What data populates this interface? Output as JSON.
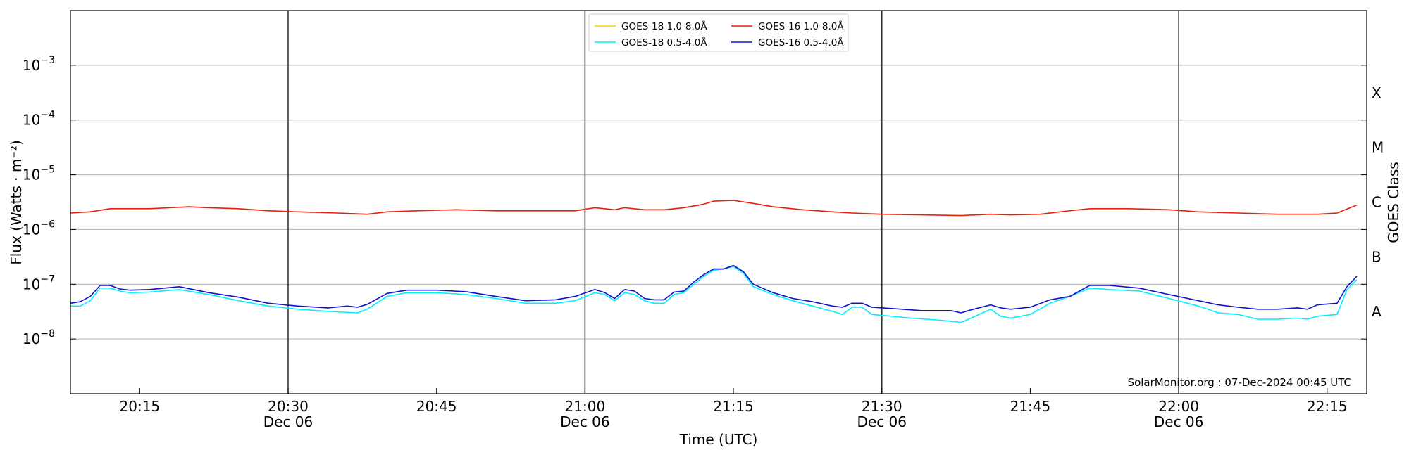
{
  "chart_data": {
    "type": "line",
    "xlabel": "Time (UTC)",
    "ylabel": "Flux (Watts · m⁻²)",
    "ylabel_right": "GOES Class",
    "credit": "SolarMonitor.org : 07-Dec-2024 00:45 UTC",
    "y_scale": "log",
    "ylim": [
      1e-09,
      0.01
    ],
    "xlim": [
      "20:08",
      "22:19"
    ],
    "grid": "horizontal",
    "legend_position": "top-center",
    "y_ticks": [
      {
        "value": 1e-08,
        "base": "10",
        "exp": "−8"
      },
      {
        "value": 1e-07,
        "base": "10",
        "exp": "−7"
      },
      {
        "value": 1e-06,
        "base": "10",
        "exp": "−6"
      },
      {
        "value": 1e-05,
        "base": "10",
        "exp": "−5"
      },
      {
        "value": 0.0001,
        "base": "10",
        "exp": "−4"
      },
      {
        "value": 0.001,
        "base": "10",
        "exp": "−3"
      }
    ],
    "x_ticks": [
      {
        "time": "20:15",
        "label": "20:15",
        "date": ""
      },
      {
        "time": "20:30",
        "label": "20:30",
        "date": "Dec 06"
      },
      {
        "time": "20:45",
        "label": "20:45",
        "date": ""
      },
      {
        "time": "21:00",
        "label": "21:00",
        "date": "Dec 06"
      },
      {
        "time": "21:15",
        "label": "21:15",
        "date": ""
      },
      {
        "time": "21:30",
        "label": "21:30",
        "date": "Dec 06"
      },
      {
        "time": "21:45",
        "label": "21:45",
        "date": ""
      },
      {
        "time": "22:00",
        "label": "22:00",
        "date": "Dec 06"
      },
      {
        "time": "22:15",
        "label": "22:15",
        "date": ""
      }
    ],
    "vlines": [
      "20:30",
      "21:00",
      "21:30",
      "22:00"
    ],
    "goes_classes": [
      {
        "label": "X",
        "value": 0.000316
      },
      {
        "label": "M",
        "value": 3.16e-05
      },
      {
        "label": "C",
        "value": 3.16e-06
      },
      {
        "label": "B",
        "value": 3.16e-07
      },
      {
        "label": "A",
        "value": 3.16e-08
      }
    ],
    "legend": [
      {
        "name": "GOES-18 1.0-8.0Å",
        "color": "#f5d000"
      },
      {
        "name": "GOES-18 0.5-4.0Å",
        "color": "#00f0ff"
      },
      {
        "name": "GOES-16 1.0-8.0Å",
        "color": "#e8200a"
      },
      {
        "name": "GOES-16 0.5-4.0Å",
        "color": "#1010d0"
      }
    ],
    "series": [
      {
        "name": "GOES-16 1.0-8.0Å",
        "color": "#e8200a",
        "points": [
          [
            "20:08",
            2e-06
          ],
          [
            "20:10",
            2.1e-06
          ],
          [
            "20:12",
            2.4e-06
          ],
          [
            "20:14",
            2.4e-06
          ],
          [
            "20:16",
            2.4e-06
          ],
          [
            "20:18",
            2.5e-06
          ],
          [
            "20:20",
            2.6e-06
          ],
          [
            "20:22",
            2.5e-06
          ],
          [
            "20:25",
            2.4e-06
          ],
          [
            "20:28",
            2.2e-06
          ],
          [
            "20:31",
            2.1e-06
          ],
          [
            "20:35",
            2e-06
          ],
          [
            "20:38",
            1.9e-06
          ],
          [
            "20:40",
            2.1e-06
          ],
          [
            "20:43",
            2.2e-06
          ],
          [
            "20:47",
            2.3e-06
          ],
          [
            "20:51",
            2.2e-06
          ],
          [
            "20:55",
            2.2e-06
          ],
          [
            "20:59",
            2.2e-06
          ],
          [
            "21:01",
            2.5e-06
          ],
          [
            "21:03",
            2.3e-06
          ],
          [
            "21:04",
            2.5e-06
          ],
          [
            "21:06",
            2.3e-06
          ],
          [
            "21:08",
            2.3e-06
          ],
          [
            "21:10",
            2.5e-06
          ],
          [
            "21:12",
            2.9e-06
          ],
          [
            "21:13",
            3.3e-06
          ],
          [
            "21:15",
            3.4e-06
          ],
          [
            "21:17",
            3e-06
          ],
          [
            "21:19",
            2.6e-06
          ],
          [
            "21:22",
            2.3e-06
          ],
          [
            "21:25",
            2.1e-06
          ],
          [
            "21:27",
            2e-06
          ],
          [
            "21:30",
            1.9e-06
          ],
          [
            "21:34",
            1.85e-06
          ],
          [
            "21:38",
            1.8e-06
          ],
          [
            "21:41",
            1.9e-06
          ],
          [
            "21:43",
            1.85e-06
          ],
          [
            "21:46",
            1.9e-06
          ],
          [
            "21:48",
            2.1e-06
          ],
          [
            "21:51",
            2.4e-06
          ],
          [
            "21:55",
            2.4e-06
          ],
          [
            "21:59",
            2.3e-06
          ],
          [
            "22:02",
            2.1e-06
          ],
          [
            "22:06",
            2e-06
          ],
          [
            "22:10",
            1.9e-06
          ],
          [
            "22:14",
            1.9e-06
          ],
          [
            "22:16",
            2e-06
          ],
          [
            "22:18",
            2.8e-06
          ]
        ]
      },
      {
        "name": "GOES-18 0.5-4.0Å",
        "color": "#00f0ff",
        "points": [
          [
            "20:08",
            4e-08
          ],
          [
            "20:09",
            4e-08
          ],
          [
            "20:10",
            5e-08
          ],
          [
            "20:11",
            8.5e-08
          ],
          [
            "20:12",
            8.5e-08
          ],
          [
            "20:13",
            7.5e-08
          ],
          [
            "20:14",
            7e-08
          ],
          [
            "20:16",
            7.2e-08
          ],
          [
            "20:19",
            8e-08
          ],
          [
            "20:22",
            6.5e-08
          ],
          [
            "20:25",
            5e-08
          ],
          [
            "20:28",
            4e-08
          ],
          [
            "20:31",
            3.5e-08
          ],
          [
            "20:34",
            3.2e-08
          ],
          [
            "20:37",
            3e-08
          ],
          [
            "20:38",
            3.5e-08
          ],
          [
            "20:40",
            6e-08
          ],
          [
            "20:42",
            7e-08
          ],
          [
            "20:45",
            7e-08
          ],
          [
            "20:48",
            6.5e-08
          ],
          [
            "20:51",
            5.5e-08
          ],
          [
            "20:54",
            4.5e-08
          ],
          [
            "20:57",
            4.5e-08
          ],
          [
            "20:59",
            5e-08
          ],
          [
            "21:01",
            7e-08
          ],
          [
            "21:02",
            6.5e-08
          ],
          [
            "21:03",
            5e-08
          ],
          [
            "21:04",
            7e-08
          ],
          [
            "21:05",
            6.5e-08
          ],
          [
            "21:06",
            5e-08
          ],
          [
            "21:07",
            4.5e-08
          ],
          [
            "21:08",
            4.5e-08
          ],
          [
            "21:09",
            6.5e-08
          ],
          [
            "21:10",
            7e-08
          ],
          [
            "21:11",
            1e-07
          ],
          [
            "21:12",
            1.4e-07
          ],
          [
            "21:13",
            1.8e-07
          ],
          [
            "21:14",
            1.9e-07
          ],
          [
            "21:15",
            2.1e-07
          ],
          [
            "21:16",
            1.6e-07
          ],
          [
            "21:17",
            9e-08
          ],
          [
            "21:19",
            6.5e-08
          ],
          [
            "21:21",
            5e-08
          ],
          [
            "21:23",
            4e-08
          ],
          [
            "21:25",
            3.2e-08
          ],
          [
            "21:26",
            2.8e-08
          ],
          [
            "21:27",
            3.8e-08
          ],
          [
            "21:28",
            3.8e-08
          ],
          [
            "21:29",
            2.8e-08
          ],
          [
            "21:31",
            2.6e-08
          ],
          [
            "21:33",
            2.4e-08
          ],
          [
            "21:36",
            2.2e-08
          ],
          [
            "21:38",
            2e-08
          ],
          [
            "21:39",
            2.4e-08
          ],
          [
            "21:41",
            3.5e-08
          ],
          [
            "21:42",
            2.6e-08
          ],
          [
            "21:43",
            2.4e-08
          ],
          [
            "21:45",
            2.8e-08
          ],
          [
            "21:47",
            4.5e-08
          ],
          [
            "21:49",
            6e-08
          ],
          [
            "21:51",
            8.5e-08
          ],
          [
            "21:53",
            8e-08
          ],
          [
            "21:56",
            7.5e-08
          ],
          [
            "21:59",
            5.5e-08
          ],
          [
            "22:02",
            4e-08
          ],
          [
            "22:04",
            3e-08
          ],
          [
            "22:06",
            2.8e-08
          ],
          [
            "22:08",
            2.3e-08
          ],
          [
            "22:10",
            2.3e-08
          ],
          [
            "22:12",
            2.4e-08
          ],
          [
            "22:13",
            2.3e-08
          ],
          [
            "22:14",
            2.6e-08
          ],
          [
            "22:16",
            2.8e-08
          ],
          [
            "22:17",
            8e-08
          ],
          [
            "22:18",
            1.2e-07
          ]
        ]
      },
      {
        "name": "GOES-16 0.5-4.0Å",
        "color": "#1010d0",
        "points": [
          [
            "20:08",
            4.5e-08
          ],
          [
            "20:09",
            4.8e-08
          ],
          [
            "20:10",
            6e-08
          ],
          [
            "20:11",
            9.5e-08
          ],
          [
            "20:12",
            9.5e-08
          ],
          [
            "20:13",
            8.2e-08
          ],
          [
            "20:14",
            7.8e-08
          ],
          [
            "20:16",
            8e-08
          ],
          [
            "20:19",
            9e-08
          ],
          [
            "20:22",
            7e-08
          ],
          [
            "20:25",
            5.8e-08
          ],
          [
            "20:28",
            4.5e-08
          ],
          [
            "20:31",
            4e-08
          ],
          [
            "20:34",
            3.7e-08
          ],
          [
            "20:36",
            4e-08
          ],
          [
            "20:37",
            3.8e-08
          ],
          [
            "20:38",
            4.3e-08
          ],
          [
            "20:40",
            6.8e-08
          ],
          [
            "20:42",
            7.8e-08
          ],
          [
            "20:45",
            7.8e-08
          ],
          [
            "20:48",
            7.3e-08
          ],
          [
            "20:51",
            6e-08
          ],
          [
            "20:54",
            5e-08
          ],
          [
            "20:57",
            5.2e-08
          ],
          [
            "20:59",
            6e-08
          ],
          [
            "21:01",
            8e-08
          ],
          [
            "21:02",
            7e-08
          ],
          [
            "21:03",
            5.5e-08
          ],
          [
            "21:04",
            8e-08
          ],
          [
            "21:05",
            7.5e-08
          ],
          [
            "21:06",
            5.5e-08
          ],
          [
            "21:07",
            5.2e-08
          ],
          [
            "21:08",
            5.2e-08
          ],
          [
            "21:09",
            7.2e-08
          ],
          [
            "21:10",
            7.5e-08
          ],
          [
            "21:11",
            1.1e-07
          ],
          [
            "21:12",
            1.5e-07
          ],
          [
            "21:13",
            1.9e-07
          ],
          [
            "21:14",
            1.9e-07
          ],
          [
            "21:15",
            2.2e-07
          ],
          [
            "21:16",
            1.7e-07
          ],
          [
            "21:17",
            1e-07
          ],
          [
            "21:19",
            7e-08
          ],
          [
            "21:21",
            5.5e-08
          ],
          [
            "21:23",
            4.8e-08
          ],
          [
            "21:25",
            4e-08
          ],
          [
            "21:26",
            3.8e-08
          ],
          [
            "21:27",
            4.5e-08
          ],
          [
            "21:28",
            4.5e-08
          ],
          [
            "21:29",
            3.8e-08
          ],
          [
            "21:31",
            3.6e-08
          ],
          [
            "21:34",
            3.3e-08
          ],
          [
            "21:37",
            3.3e-08
          ],
          [
            "21:38",
            3e-08
          ],
          [
            "21:39",
            3.4e-08
          ],
          [
            "21:41",
            4.2e-08
          ],
          [
            "21:42",
            3.7e-08
          ],
          [
            "21:43",
            3.5e-08
          ],
          [
            "21:45",
            3.8e-08
          ],
          [
            "21:47",
            5.2e-08
          ],
          [
            "21:49",
            6e-08
          ],
          [
            "21:51",
            9.5e-08
          ],
          [
            "21:53",
            9.5e-08
          ],
          [
            "21:56",
            8.5e-08
          ],
          [
            "21:59",
            6.5e-08
          ],
          [
            "22:02",
            5e-08
          ],
          [
            "22:04",
            4.2e-08
          ],
          [
            "22:06",
            3.8e-08
          ],
          [
            "22:08",
            3.5e-08
          ],
          [
            "22:10",
            3.5e-08
          ],
          [
            "22:12",
            3.7e-08
          ],
          [
            "22:13",
            3.5e-08
          ],
          [
            "22:14",
            4.2e-08
          ],
          [
            "22:16",
            4.5e-08
          ],
          [
            "22:17",
            9e-08
          ],
          [
            "22:18",
            1.4e-07
          ]
        ]
      }
    ]
  }
}
